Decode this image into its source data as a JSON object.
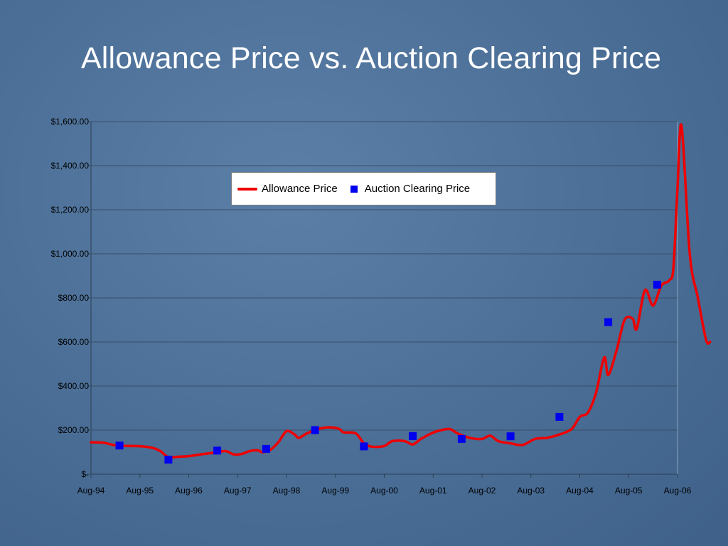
{
  "slide": {
    "title": "Allowance Price vs. Auction Clearing Price"
  },
  "chart_data": {
    "type": "line",
    "title": "Allowance Price vs. Auction Clearing Price",
    "xlabel": "",
    "ylabel": "",
    "ylim": [
      0,
      1600
    ],
    "xlim": [
      "1994-08",
      "2006-08"
    ],
    "y_ticks": [
      0,
      200,
      400,
      600,
      800,
      1000,
      1200,
      1400,
      1600
    ],
    "y_tick_labels": [
      "$-",
      "$200.00",
      "$400.00",
      "$600.00",
      "$800.00",
      "$1,000.00",
      "$1,200.00",
      "$1,400.00",
      "$1,600.00"
    ],
    "x_tick_labels": [
      "Aug-94",
      "Aug-95",
      "Aug-96",
      "Aug-97",
      "Aug-98",
      "Aug-99",
      "Aug-00",
      "Aug-01",
      "Aug-02",
      "Aug-03",
      "Aug-04",
      "Aug-05",
      "Aug-06"
    ],
    "grid": true,
    "legend_position": "top-center",
    "series": [
      {
        "name": "Allowance Price",
        "style": "line",
        "color": "#ee0000",
        "points": [
          [
            "1994-08",
            145
          ],
          [
            "1994-11",
            143
          ],
          [
            "1995-02",
            131
          ],
          [
            "1995-05",
            128
          ],
          [
            "1995-08",
            127
          ],
          [
            "1995-11",
            120
          ],
          [
            "1996-01",
            105
          ],
          [
            "1996-03",
            78
          ],
          [
            "1996-06",
            80
          ],
          [
            "1996-08",
            82
          ],
          [
            "1996-11",
            90
          ],
          [
            "1997-02",
            97
          ],
          [
            "1997-05",
            105
          ],
          [
            "1997-07",
            90
          ],
          [
            "1997-09",
            92
          ],
          [
            "1997-11",
            105
          ],
          [
            "1998-01",
            108
          ],
          [
            "1998-02",
            100
          ],
          [
            "1998-04",
            110
          ],
          [
            "1998-06",
            145
          ],
          [
            "1998-08",
            195
          ],
          [
            "1998-10",
            180
          ],
          [
            "1998-11",
            165
          ],
          [
            "1999-01",
            185
          ],
          [
            "1999-03",
            200
          ],
          [
            "1999-05",
            210
          ],
          [
            "1999-07",
            212
          ],
          [
            "1999-09",
            205
          ],
          [
            "1999-10",
            190
          ],
          [
            "2000-01",
            185
          ],
          [
            "2000-03",
            140
          ],
          [
            "2000-05",
            125
          ],
          [
            "2000-08",
            128
          ],
          [
            "2000-10",
            150
          ],
          [
            "2001-01",
            150
          ],
          [
            "2001-03",
            135
          ],
          [
            "2001-05",
            160
          ],
          [
            "2001-07",
            180
          ],
          [
            "2001-09",
            195
          ],
          [
            "2001-12",
            205
          ],
          [
            "2002-02",
            185
          ],
          [
            "2002-05",
            165
          ],
          [
            "2002-08",
            160
          ],
          [
            "2002-10",
            175
          ],
          [
            "2002-12",
            150
          ],
          [
            "2003-03",
            140
          ],
          [
            "2003-06",
            133
          ],
          [
            "2003-09",
            160
          ],
          [
            "2003-12",
            165
          ],
          [
            "2004-03",
            180
          ],
          [
            "2004-06",
            205
          ],
          [
            "2004-08",
            260
          ],
          [
            "2004-10",
            280
          ],
          [
            "2004-12",
            370
          ],
          [
            "2005-02",
            530
          ],
          [
            "2005-03",
            450
          ],
          [
            "2005-05",
            560
          ],
          [
            "2005-07",
            700
          ],
          [
            "2005-09",
            705
          ],
          [
            "2005-10",
            660
          ],
          [
            "2005-12",
            835
          ],
          [
            "2006-02",
            765
          ],
          [
            "2006-04",
            855
          ],
          [
            "2006-06",
            880
          ],
          [
            "2006-07",
            940
          ],
          [
            "2006-08",
            1300
          ],
          [
            "2006-09",
            1580
          ],
          [
            "2006-11",
            1000
          ],
          [
            "2007-01",
            800
          ],
          [
            "2007-03",
            610
          ],
          [
            "2007-04",
            600
          ]
        ]
      },
      {
        "name": "Auction Clearing Price",
        "style": "markers",
        "color": "#0000ee",
        "points": [
          [
            "1995-03",
            130
          ],
          [
            "1996-03",
            66
          ],
          [
            "1997-03",
            107
          ],
          [
            "1998-03",
            115
          ],
          [
            "1999-03",
            200
          ],
          [
            "2000-03",
            126
          ],
          [
            "2001-03",
            173
          ],
          [
            "2002-03",
            160
          ],
          [
            "2003-03",
            172
          ],
          [
            "2004-03",
            260
          ],
          [
            "2005-03",
            690
          ],
          [
            "2006-03",
            860
          ]
        ]
      }
    ]
  }
}
